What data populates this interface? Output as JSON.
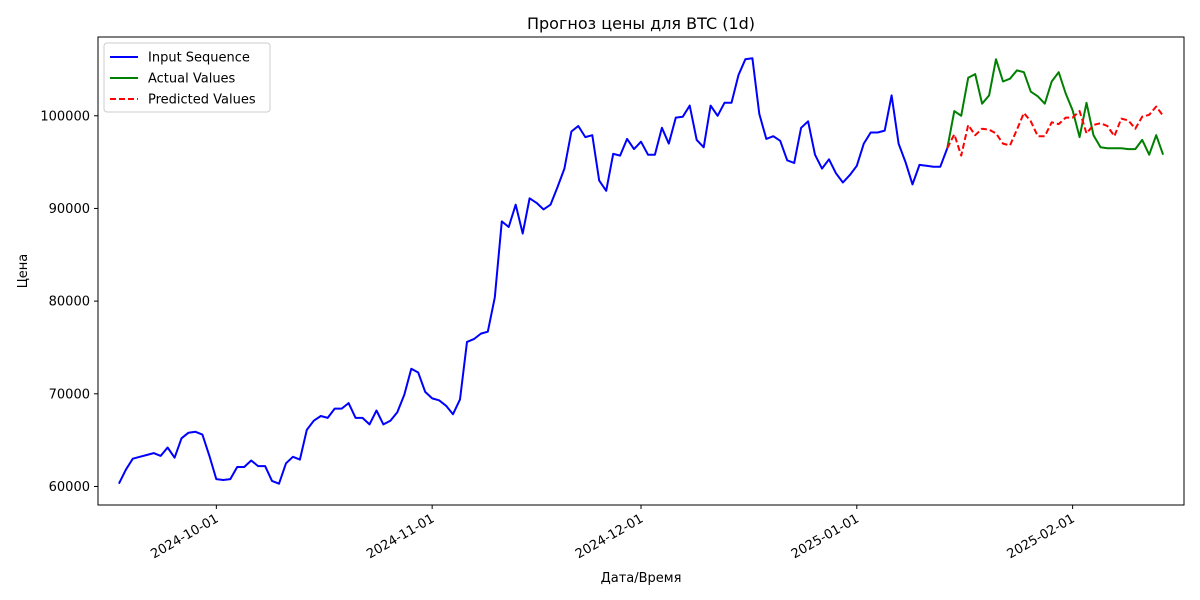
{
  "chart_data": {
    "type": "line",
    "title": "Прогноз цены для BTC (1d)",
    "xlabel": "Дата/Время",
    "ylabel": "Цена",
    "xlim": [
      "2024-09-14",
      "2025-02-17"
    ],
    "ylim": [
      58000,
      108500
    ],
    "x_ticks": [
      "2024-10-01",
      "2024-11-01",
      "2024-12-01",
      "2025-01-01",
      "2025-02-01"
    ],
    "y_ticks": [
      60000,
      70000,
      80000,
      90000,
      100000
    ],
    "legend_position": "top-left",
    "grid": false,
    "series": [
      {
        "name": "Input Sequence",
        "color": "#0000ff",
        "style": "solid",
        "points": [
          [
            "2024-09-17",
            60300
          ],
          [
            "2024-09-18",
            61800
          ],
          [
            "2024-09-19",
            63000
          ],
          [
            "2024-09-20",
            63200
          ],
          [
            "2024-09-21",
            63400
          ],
          [
            "2024-09-22",
            63600
          ],
          [
            "2024-09-23",
            63300
          ],
          [
            "2024-09-24",
            64200
          ],
          [
            "2024-09-25",
            63100
          ],
          [
            "2024-09-26",
            65200
          ],
          [
            "2024-09-27",
            65800
          ],
          [
            "2024-09-28",
            65900
          ],
          [
            "2024-09-29",
            65600
          ],
          [
            "2024-09-30",
            63300
          ],
          [
            "2024-10-01",
            60800
          ],
          [
            "2024-10-02",
            60700
          ],
          [
            "2024-10-03",
            60800
          ],
          [
            "2024-10-04",
            62100
          ],
          [
            "2024-10-05",
            62100
          ],
          [
            "2024-10-06",
            62800
          ],
          [
            "2024-10-07",
            62200
          ],
          [
            "2024-10-08",
            62200
          ],
          [
            "2024-10-09",
            60600
          ],
          [
            "2024-10-10",
            60300
          ],
          [
            "2024-10-11",
            62500
          ],
          [
            "2024-10-12",
            63200
          ],
          [
            "2024-10-13",
            62900
          ],
          [
            "2024-10-14",
            66100
          ],
          [
            "2024-10-15",
            67100
          ],
          [
            "2024-10-16",
            67600
          ],
          [
            "2024-10-17",
            67400
          ],
          [
            "2024-10-18",
            68400
          ],
          [
            "2024-10-19",
            68400
          ],
          [
            "2024-10-20",
            69000
          ],
          [
            "2024-10-21",
            67400
          ],
          [
            "2024-10-22",
            67400
          ],
          [
            "2024-10-23",
            66700
          ],
          [
            "2024-10-24",
            68200
          ],
          [
            "2024-10-25",
            66700
          ],
          [
            "2024-10-26",
            67100
          ],
          [
            "2024-10-27",
            68000
          ],
          [
            "2024-10-28",
            69900
          ],
          [
            "2024-10-29",
            72700
          ],
          [
            "2024-10-30",
            72300
          ],
          [
            "2024-10-31",
            70200
          ],
          [
            "2024-11-01",
            69500
          ],
          [
            "2024-11-02",
            69300
          ],
          [
            "2024-11-03",
            68700
          ],
          [
            "2024-11-04",
            67800
          ],
          [
            "2024-11-05",
            69400
          ],
          [
            "2024-11-06",
            75600
          ],
          [
            "2024-11-07",
            75900
          ],
          [
            "2024-11-08",
            76500
          ],
          [
            "2024-11-09",
            76700
          ],
          [
            "2024-11-10",
            80400
          ],
          [
            "2024-11-11",
            88600
          ],
          [
            "2024-11-12",
            88000
          ],
          [
            "2024-11-13",
            90400
          ],
          [
            "2024-11-14",
            87300
          ],
          [
            "2024-11-15",
            91100
          ],
          [
            "2024-11-16",
            90600
          ],
          [
            "2024-11-17",
            89900
          ],
          [
            "2024-11-18",
            90400
          ],
          [
            "2024-11-19",
            92300
          ],
          [
            "2024-11-20",
            94300
          ],
          [
            "2024-11-21",
            98300
          ],
          [
            "2024-11-22",
            98900
          ],
          [
            "2024-11-23",
            97700
          ],
          [
            "2024-11-24",
            97900
          ],
          [
            "2024-11-25",
            93000
          ],
          [
            "2024-11-26",
            91900
          ],
          [
            "2024-11-27",
            95900
          ],
          [
            "2024-11-28",
            95700
          ],
          [
            "2024-11-29",
            97500
          ],
          [
            "2024-11-30",
            96400
          ],
          [
            "2024-12-01",
            97200
          ],
          [
            "2024-12-02",
            95800
          ],
          [
            "2024-12-03",
            95800
          ],
          [
            "2024-12-04",
            98700
          ],
          [
            "2024-12-05",
            97000
          ],
          [
            "2024-12-06",
            99800
          ],
          [
            "2024-12-07",
            99900
          ],
          [
            "2024-12-08",
            101100
          ],
          [
            "2024-12-09",
            97400
          ],
          [
            "2024-12-10",
            96600
          ],
          [
            "2024-12-11",
            101100
          ],
          [
            "2024-12-12",
            100000
          ],
          [
            "2024-12-13",
            101400
          ],
          [
            "2024-12-14",
            101400
          ],
          [
            "2024-12-15",
            104400
          ],
          [
            "2024-12-16",
            106100
          ],
          [
            "2024-12-17",
            106200
          ],
          [
            "2024-12-18",
            100200
          ],
          [
            "2024-12-19",
            97500
          ],
          [
            "2024-12-20",
            97800
          ],
          [
            "2024-12-21",
            97300
          ],
          [
            "2024-12-22",
            95200
          ],
          [
            "2024-12-23",
            94900
          ],
          [
            "2024-12-24",
            98700
          ],
          [
            "2024-12-25",
            99400
          ],
          [
            "2024-12-26",
            95800
          ],
          [
            "2024-12-27",
            94300
          ],
          [
            "2024-12-28",
            95300
          ],
          [
            "2024-12-29",
            93800
          ],
          [
            "2024-12-30",
            92800
          ],
          [
            "2024-12-31",
            93600
          ],
          [
            "2025-01-01",
            94600
          ],
          [
            "2025-01-02",
            97000
          ],
          [
            "2025-01-03",
            98200
          ],
          [
            "2025-01-04",
            98200
          ],
          [
            "2025-01-05",
            98400
          ],
          [
            "2025-01-06",
            102200
          ],
          [
            "2025-01-07",
            97000
          ],
          [
            "2025-01-08",
            95000
          ],
          [
            "2025-01-09",
            92600
          ],
          [
            "2025-01-10",
            94700
          ],
          [
            "2025-01-11",
            94600
          ],
          [
            "2025-01-12",
            94500
          ],
          [
            "2025-01-13",
            94500
          ],
          [
            "2025-01-14",
            96500
          ]
        ]
      },
      {
        "name": "Actual Values",
        "color": "#008000",
        "style": "solid",
        "points": [
          [
            "2025-01-14",
            96500
          ],
          [
            "2025-01-15",
            100500
          ],
          [
            "2025-01-16",
            100000
          ],
          [
            "2025-01-17",
            104100
          ],
          [
            "2025-01-18",
            104500
          ],
          [
            "2025-01-19",
            101300
          ],
          [
            "2025-01-20",
            102200
          ],
          [
            "2025-01-21",
            106100
          ],
          [
            "2025-01-22",
            103700
          ],
          [
            "2025-01-23",
            104000
          ],
          [
            "2025-01-24",
            104900
          ],
          [
            "2025-01-25",
            104700
          ],
          [
            "2025-01-26",
            102600
          ],
          [
            "2025-01-27",
            102100
          ],
          [
            "2025-01-28",
            101300
          ],
          [
            "2025-01-29",
            103700
          ],
          [
            "2025-01-30",
            104700
          ],
          [
            "2025-01-31",
            102400
          ],
          [
            "2025-02-01",
            100600
          ],
          [
            "2025-02-02",
            97700
          ],
          [
            "2025-02-03",
            101400
          ],
          [
            "2025-02-04",
            97900
          ],
          [
            "2025-02-05",
            96600
          ],
          [
            "2025-02-06",
            96500
          ],
          [
            "2025-02-07",
            96500
          ],
          [
            "2025-02-08",
            96500
          ],
          [
            "2025-02-09",
            96400
          ],
          [
            "2025-02-10",
            96400
          ],
          [
            "2025-02-11",
            97400
          ],
          [
            "2025-02-12",
            95800
          ],
          [
            "2025-02-13",
            97900
          ],
          [
            "2025-02-14",
            95800
          ]
        ]
      },
      {
        "name": "Predicted Values",
        "color": "#ff0000",
        "style": "dashed",
        "points": [
          [
            "2025-01-14",
            96500
          ],
          [
            "2025-01-15",
            98000
          ],
          [
            "2025-01-16",
            95700
          ],
          [
            "2025-01-17",
            99000
          ],
          [
            "2025-01-18",
            97900
          ],
          [
            "2025-01-19",
            98600
          ],
          [
            "2025-01-20",
            98500
          ],
          [
            "2025-01-21",
            98100
          ],
          [
            "2025-01-22",
            97000
          ],
          [
            "2025-01-23",
            96800
          ],
          [
            "2025-01-24",
            98500
          ],
          [
            "2025-01-25",
            100300
          ],
          [
            "2025-01-26",
            99400
          ],
          [
            "2025-01-27",
            97800
          ],
          [
            "2025-01-28",
            97800
          ],
          [
            "2025-01-29",
            99300
          ],
          [
            "2025-01-30",
            99100
          ],
          [
            "2025-01-31",
            99800
          ],
          [
            "2025-02-01",
            99800
          ],
          [
            "2025-02-02",
            100500
          ],
          [
            "2025-02-03",
            98100
          ],
          [
            "2025-02-04",
            99000
          ],
          [
            "2025-02-05",
            99200
          ],
          [
            "2025-02-06",
            98900
          ],
          [
            "2025-02-07",
            97800
          ],
          [
            "2025-02-08",
            99700
          ],
          [
            "2025-02-09",
            99500
          ],
          [
            "2025-02-10",
            98600
          ],
          [
            "2025-02-11",
            99900
          ],
          [
            "2025-02-12",
            100100
          ],
          [
            "2025-02-13",
            101000
          ],
          [
            "2025-02-14",
            100000
          ]
        ]
      }
    ]
  }
}
